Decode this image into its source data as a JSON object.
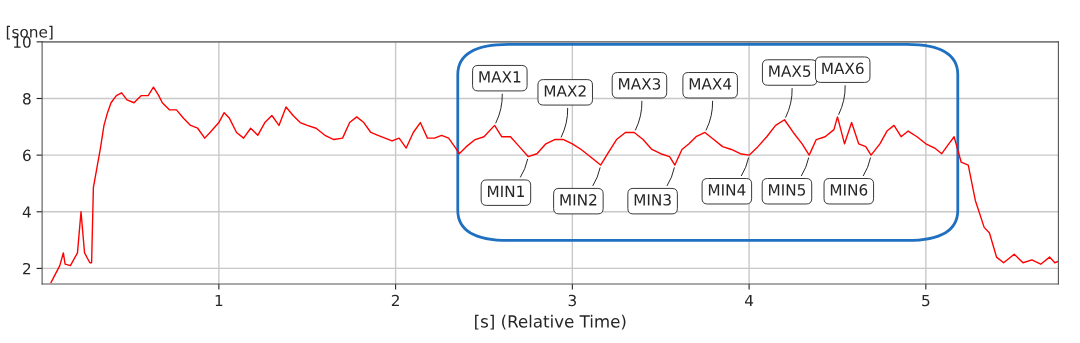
{
  "chart_data": {
    "type": "line",
    "xlabel": "[s] (Relative Time)",
    "ylabel": "[sone]",
    "xlim": [
      0,
      5.75
    ],
    "ylim": [
      1.45,
      10
    ],
    "xticks": [
      1,
      2,
      3,
      4,
      5
    ],
    "yticks": [
      2,
      4,
      6,
      8,
      10
    ],
    "grid": true,
    "marker": "none",
    "line_style": "solid",
    "series": [
      {
        "color": "#ff0000",
        "x": [
          0.05,
          0.1,
          0.12,
          0.13,
          0.16,
          0.2,
          0.22,
          0.24,
          0.27,
          0.28,
          0.29,
          0.31,
          0.33,
          0.35,
          0.37,
          0.39,
          0.42,
          0.45,
          0.48,
          0.52,
          0.56,
          0.6,
          0.63,
          0.66,
          0.68,
          0.72,
          0.76,
          0.8,
          0.84,
          0.88,
          0.92,
          0.95,
          1.0,
          1.03,
          1.06,
          1.1,
          1.14,
          1.18,
          1.22,
          1.26,
          1.3,
          1.34,
          1.38,
          1.42,
          1.46,
          1.5,
          1.55,
          1.6,
          1.65,
          1.7,
          1.74,
          1.78,
          1.82,
          1.86,
          1.9,
          1.94,
          1.98,
          2.02,
          2.06,
          2.1,
          2.14,
          2.18,
          2.22,
          2.26,
          2.3,
          2.34,
          2.36,
          2.4,
          2.45,
          2.5,
          2.56,
          2.6,
          2.65,
          2.7,
          2.75,
          2.8,
          2.85,
          2.9,
          2.95,
          3.0,
          3.05,
          3.1,
          3.16,
          3.2,
          3.25,
          3.3,
          3.35,
          3.4,
          3.45,
          3.5,
          3.55,
          3.58,
          3.62,
          3.66,
          3.7,
          3.75,
          3.8,
          3.85,
          3.9,
          3.95,
          4.0,
          4.05,
          4.1,
          4.15,
          4.2,
          4.25,
          4.3,
          4.34,
          4.38,
          4.43,
          4.48,
          4.5,
          4.54,
          4.58,
          4.62,
          4.66,
          4.69,
          4.74,
          4.78,
          4.82,
          4.86,
          4.9,
          4.95,
          5.0,
          5.05,
          5.09,
          5.13,
          5.16,
          5.18,
          5.2,
          5.24,
          5.28,
          5.33,
          5.36,
          5.4,
          5.44,
          5.5,
          5.55,
          5.6,
          5.65,
          5.7,
          5.73,
          5.75
        ],
        "values": [
          1.5,
          2.1,
          2.55,
          2.15,
          2.1,
          2.55,
          4.0,
          2.55,
          2.2,
          2.2,
          4.85,
          5.55,
          6.25,
          7.05,
          7.5,
          7.85,
          8.1,
          8.2,
          7.95,
          7.85,
          8.1,
          8.1,
          8.4,
          8.1,
          7.85,
          7.6,
          7.6,
          7.3,
          7.05,
          6.95,
          6.6,
          6.8,
          7.15,
          7.5,
          7.3,
          6.8,
          6.6,
          6.95,
          6.7,
          7.15,
          7.4,
          7.05,
          7.7,
          7.4,
          7.15,
          7.05,
          6.95,
          6.7,
          6.55,
          6.6,
          7.15,
          7.35,
          7.15,
          6.8,
          6.7,
          6.6,
          6.5,
          6.6,
          6.25,
          6.8,
          7.15,
          6.6,
          6.6,
          6.7,
          6.6,
          6.25,
          6.05,
          6.3,
          6.55,
          6.65,
          7.05,
          6.65,
          6.65,
          6.3,
          5.95,
          6.05,
          6.4,
          6.55,
          6.55,
          6.4,
          6.2,
          5.95,
          5.65,
          6.05,
          6.55,
          6.8,
          6.8,
          6.55,
          6.2,
          6.05,
          5.95,
          5.65,
          6.2,
          6.4,
          6.65,
          6.8,
          6.55,
          6.3,
          6.2,
          6.05,
          6.0,
          6.3,
          6.65,
          7.05,
          7.25,
          6.8,
          6.4,
          6.0,
          6.55,
          6.65,
          6.9,
          7.35,
          6.4,
          7.15,
          6.4,
          6.3,
          6.0,
          6.4,
          6.85,
          7.05,
          6.65,
          6.85,
          6.65,
          6.4,
          6.25,
          6.05,
          6.4,
          6.65,
          6.2,
          5.75,
          5.65,
          4.4,
          3.45,
          3.25,
          2.4,
          2.2,
          2.5,
          2.2,
          2.3,
          2.15,
          2.4,
          2.2,
          2.25
        ]
      }
    ],
    "annotations": [
      {
        "text": "MAX1",
        "x": 2.56,
        "y": 7.05
      },
      {
        "text": "MAX2",
        "x": 2.93,
        "y": 6.55
      },
      {
        "text": "MAX3",
        "x": 3.35,
        "y": 6.8
      },
      {
        "text": "MAX4",
        "x": 3.75,
        "y": 6.8
      },
      {
        "text": "MAX5",
        "x": 4.2,
        "y": 7.25
      },
      {
        "text": "MAX6",
        "x": 4.5,
        "y": 7.35
      },
      {
        "text": "MIN1",
        "x": 2.75,
        "y": 5.95
      },
      {
        "text": "MIN2",
        "x": 3.16,
        "y": 5.65
      },
      {
        "text": "MIN3",
        "x": 3.58,
        "y": 5.65
      },
      {
        "text": "MIN4",
        "x": 4.0,
        "y": 6.0
      },
      {
        "text": "MIN5",
        "x": 4.34,
        "y": 6.0
      },
      {
        "text": "MIN6",
        "x": 4.69,
        "y": 6.0
      }
    ]
  }
}
